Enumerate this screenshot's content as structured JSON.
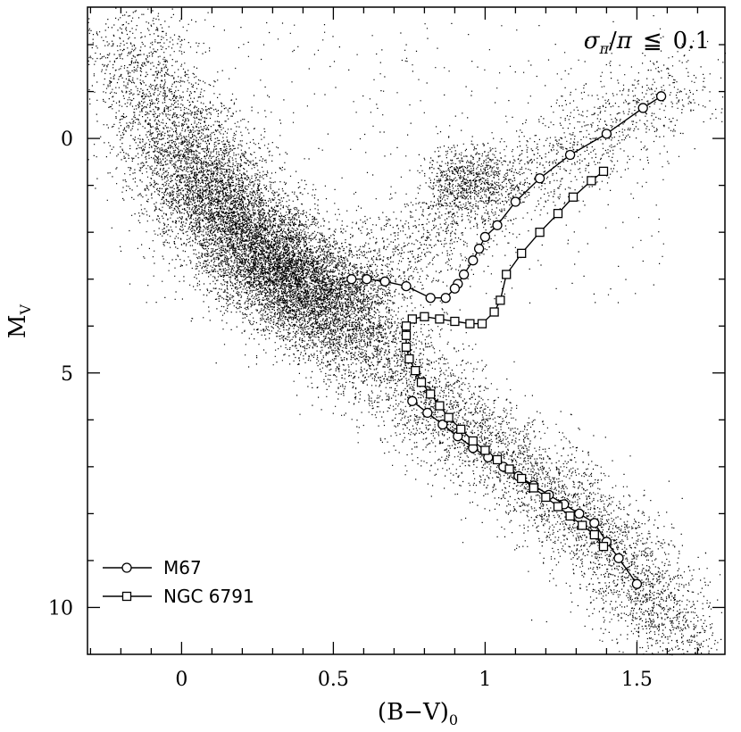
{
  "chart_data": {
    "type": "scatter",
    "xlabel": "(B−V)",
    "xlabel_sub": "0",
    "ylabel": "M",
    "ylabel_sub": "V",
    "xlim": [
      -0.31,
      1.79
    ],
    "ylim": [
      11.0,
      -2.8
    ],
    "y_inverted": true,
    "grid": false,
    "x_ticks": [
      0,
      0.5,
      1,
      1.5
    ],
    "x_tick_labels": [
      "0",
      "0.5",
      "1",
      "1.5"
    ],
    "y_ticks": [
      0,
      5,
      10
    ],
    "y_tick_labels": [
      "0",
      "5",
      "10"
    ],
    "annotation": {
      "sigma": "σ",
      "sub": "π",
      "slash": "/",
      "pi": "π",
      "rel": "≦",
      "value": "0.1",
      "placement": "top-right"
    },
    "legend_placement": "bottom-left",
    "field_stars": {
      "description_free": true,
      "main_sequence_ridge": [
        [
          -0.2,
          -2.3
        ],
        [
          -0.05,
          -0.5
        ],
        [
          0.1,
          1.2
        ],
        [
          0.3,
          2.6
        ],
        [
          0.45,
          3.5
        ],
        [
          0.55,
          4.2
        ],
        [
          0.7,
          5.0
        ],
        [
          0.85,
          5.8
        ],
        [
          1.0,
          6.5
        ],
        [
          1.15,
          7.2
        ],
        [
          1.3,
          8.0
        ],
        [
          1.45,
          8.9
        ],
        [
          1.55,
          9.8
        ],
        [
          1.65,
          10.9
        ]
      ],
      "giant_clump": [
        0.95,
        0.9
      ],
      "giant_branch": [
        [
          0.55,
          3.0
        ],
        [
          0.75,
          2.3
        ],
        [
          0.9,
          1.6
        ],
        [
          1.1,
          0.8
        ],
        [
          1.3,
          0.2
        ],
        [
          1.5,
          -0.6
        ],
        [
          1.65,
          -1.2
        ]
      ]
    },
    "series": [
      {
        "name": "M67",
        "marker": "circle",
        "points": [
          [
            1.58,
            -0.9
          ],
          [
            1.52,
            -0.65
          ],
          [
            1.4,
            -0.1
          ],
          [
            1.28,
            0.35
          ],
          [
            1.18,
            0.85
          ],
          [
            1.1,
            1.35
          ],
          [
            1.04,
            1.85
          ],
          [
            1.0,
            2.1
          ],
          [
            0.98,
            2.35
          ],
          [
            0.96,
            2.6
          ],
          [
            0.93,
            2.9
          ],
          [
            0.91,
            3.1
          ],
          [
            0.9,
            3.2
          ],
          [
            0.87,
            3.4
          ],
          [
            0.82,
            3.4
          ],
          [
            0.74,
            3.15
          ],
          [
            0.67,
            3.05
          ],
          [
            0.61,
            3.0
          ],
          [
            0.56,
            3.0
          ],
          [
            0.76,
            5.6
          ],
          [
            0.81,
            5.85
          ],
          [
            0.86,
            6.1
          ],
          [
            0.91,
            6.35
          ],
          [
            0.96,
            6.6
          ],
          [
            1.01,
            6.8
          ],
          [
            1.06,
            7.0
          ],
          [
            1.11,
            7.2
          ],
          [
            1.16,
            7.4
          ],
          [
            1.21,
            7.6
          ],
          [
            1.26,
            7.8
          ],
          [
            1.31,
            8.0
          ],
          [
            1.36,
            8.2
          ],
          [
            1.4,
            8.6
          ],
          [
            1.44,
            8.95
          ],
          [
            1.5,
            9.5
          ]
        ]
      },
      {
        "name": "NGC 6791",
        "marker": "square",
        "points": [
          [
            1.39,
            0.7
          ],
          [
            1.35,
            0.9
          ],
          [
            1.29,
            1.25
          ],
          [
            1.24,
            1.6
          ],
          [
            1.18,
            2.0
          ],
          [
            1.12,
            2.45
          ],
          [
            1.07,
            2.9
          ],
          [
            1.05,
            3.45
          ],
          [
            1.03,
            3.7
          ],
          [
            0.99,
            3.95
          ],
          [
            0.95,
            3.95
          ],
          [
            0.9,
            3.9
          ],
          [
            0.85,
            3.85
          ],
          [
            0.8,
            3.8
          ],
          [
            0.76,
            3.85
          ],
          [
            0.74,
            4.0
          ],
          [
            0.74,
            4.2
          ],
          [
            0.74,
            4.45
          ],
          [
            0.75,
            4.7
          ],
          [
            0.77,
            4.95
          ],
          [
            0.79,
            5.2
          ],
          [
            0.82,
            5.45
          ],
          [
            0.85,
            5.7
          ],
          [
            0.88,
            5.95
          ],
          [
            0.92,
            6.2
          ],
          [
            0.96,
            6.45
          ],
          [
            1.0,
            6.65
          ],
          [
            1.04,
            6.85
          ],
          [
            1.08,
            7.05
          ],
          [
            1.12,
            7.25
          ],
          [
            1.16,
            7.45
          ],
          [
            1.2,
            7.65
          ],
          [
            1.24,
            7.85
          ],
          [
            1.28,
            8.05
          ],
          [
            1.32,
            8.25
          ],
          [
            1.36,
            8.45
          ],
          [
            1.39,
            8.7
          ]
        ]
      }
    ]
  }
}
